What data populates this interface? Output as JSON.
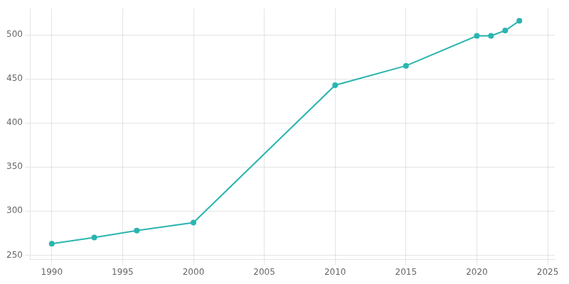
{
  "chart_data": {
    "type": "line",
    "x": [
      1990,
      1993,
      1996,
      2000,
      2010,
      2015,
      2020,
      2021,
      2022,
      2023
    ],
    "values": [
      263,
      270,
      278,
      287,
      443,
      465,
      499,
      499,
      505,
      516
    ],
    "color": "#2AB5B0",
    "marker": "circle",
    "xlim": [
      1988.5,
      2025.5
    ],
    "xticks": [
      1990,
      1995,
      2000,
      2005,
      2010,
      2015,
      2020,
      2025
    ],
    "ylim": [
      245,
      530
    ],
    "yticks": [
      250,
      300,
      350,
      400,
      450,
      500
    ],
    "grid": true
  }
}
